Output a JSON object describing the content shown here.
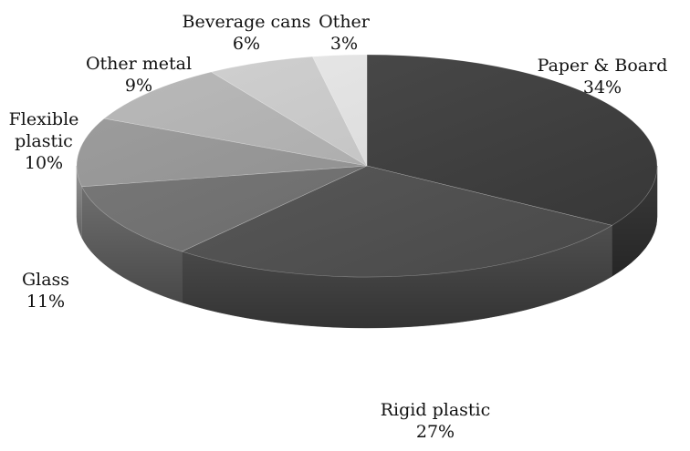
{
  "chart_data": {
    "type": "pie",
    "style": "3d",
    "title": "",
    "slices": [
      {
        "label": "Paper & Board",
        "value": 34,
        "value_label": "34%",
        "color": "#3a3a3a"
      },
      {
        "label": "Rigid plastic",
        "value": 27,
        "value_label": "27%",
        "color": "#4f4f4f"
      },
      {
        "label": "Glass",
        "value": 11,
        "value_label": "11%",
        "color": "#6f6f6f"
      },
      {
        "label": "Flexible plastic",
        "label_lines": [
          "Flexible",
          "plastic"
        ],
        "value": 10,
        "value_label": "10%",
        "color": "#959595"
      },
      {
        "label": "Other metal",
        "value": 9,
        "value_label": "9%",
        "color": "#b3b3b3"
      },
      {
        "label": "Beverage cans",
        "value": 6,
        "value_label": "6%",
        "color": "#cdcdcd"
      },
      {
        "label": "Other",
        "value": 3,
        "value_label": "3%",
        "color": "#e8e8e8"
      }
    ]
  }
}
